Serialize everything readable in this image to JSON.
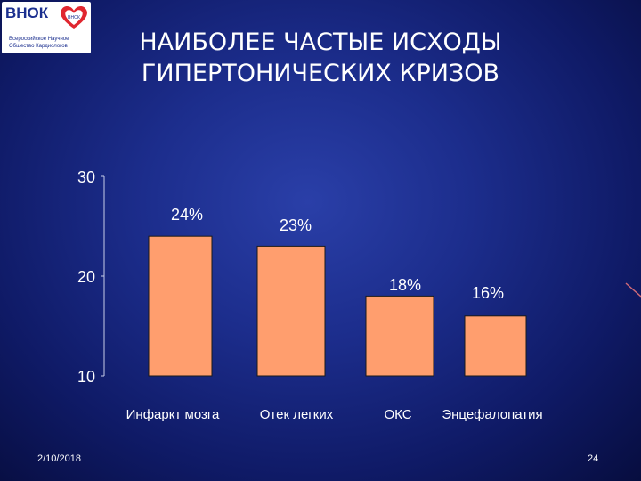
{
  "logo": {
    "brand": "ВНОК",
    "heart_badge": "ВНОК",
    "subtitle_line1": "Всероссийское Научное",
    "subtitle_line2": "Общество Кардиологов"
  },
  "title": {
    "line1": "НАИБОЛЕЕ ЧАСТЫЕ ИСХОДЫ",
    "line2": "ГИПЕРТОНИЧЕСКИХ КРИЗОВ"
  },
  "footer": {
    "date": "2/10/2018",
    "page_number": "24"
  },
  "colors": {
    "bar_fill": "#ff9e6e",
    "bar_stroke": "#1a1a1a",
    "background": "#1c2d8c",
    "text": "#ffffff"
  },
  "chart_data": {
    "type": "bar",
    "categories": [
      "Инфаркт мозга",
      "Отек легких",
      "ОКС",
      "Энцефалопатия"
    ],
    "values": [
      24,
      23,
      18,
      16
    ],
    "data_labels": [
      "24%",
      "23%",
      "18%",
      "16%"
    ],
    "yticks": [
      "10",
      "20",
      "30"
    ],
    "ylim": [
      10,
      30
    ],
    "grid": false,
    "legend": "none"
  }
}
